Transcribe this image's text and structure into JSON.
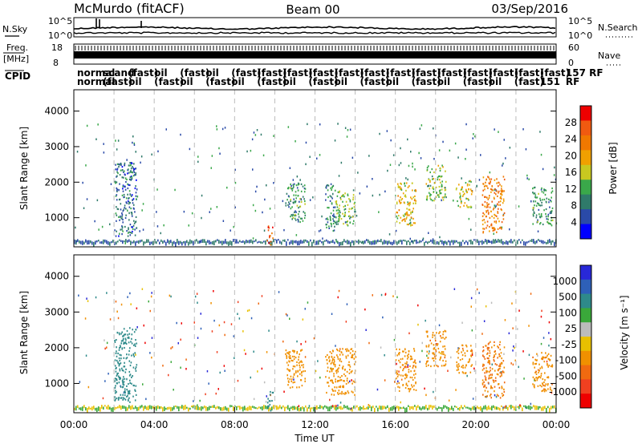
{
  "header": {
    "title": "McMurdo (fitACF)",
    "beam": "Beam 00",
    "date": "03/Sep/2016"
  },
  "noise_panel": {
    "left_label": "N.Sky",
    "right_label": "N.Search",
    "left_ticks": [
      "10^5",
      "10^0"
    ],
    "right_ticks": [
      "10^5",
      "10^0"
    ]
  },
  "freq_panel": {
    "left_label": "Freq.",
    "left_unit": "[MHz]",
    "left_ticks": [
      "18",
      "8"
    ],
    "right_label": "Nave",
    "right_ticks": [
      "60",
      "0"
    ]
  },
  "cpid_panel": {
    "label": "CPID",
    "row1": [
      "normal",
      "scand",
      "(fast)",
      "oil",
      "(fast)",
      "oil",
      "(fast)",
      "(fast)",
      "(fast)",
      "(fast)",
      "(fast)",
      "(fast)",
      "(fast)",
      "(fast)",
      "(fast)",
      "(fast)",
      "(fast)",
      "(fast)",
      "(fast)",
      "157 RF"
    ],
    "row2": [
      "normal",
      "(fast)",
      "oil",
      "(fast)",
      "oil",
      "(fast)",
      "oil",
      "(fast)",
      "oil",
      "(fast)",
      "oil",
      "(fast)",
      "oil",
      "(fast)",
      "oil",
      "(fast)",
      "oil",
      "(fast)",
      "151",
      "RF"
    ]
  },
  "colors": {
    "power_scale": [
      "#0000ff",
      "#2a4aa8",
      "#2f7a6a",
      "#3aa84a",
      "#c8c820",
      "#f0a000",
      "#f07800",
      "#f05a10",
      "#ee0000"
    ],
    "velocity_scale": [
      "#2828d8",
      "#2e60b8",
      "#2e8a8a",
      "#3aa83a",
      "#bcbcbc",
      "#e8c000",
      "#f09000",
      "#f06a10",
      "#f04020",
      "#ee0000"
    ]
  },
  "chart_data": [
    {
      "type": "heatmap",
      "panel": "power",
      "ylabel": "Slant Range [km]",
      "xlim_hours": [
        0,
        24
      ],
      "ylim_km": [
        180,
        4600
      ],
      "yticks": [
        1000,
        2000,
        3000,
        4000
      ],
      "colorbar": {
        "label": "Power [dB]",
        "ticks": [
          "28",
          "24",
          "20",
          "16",
          "12",
          "8",
          "4"
        ]
      },
      "echo_regions": [
        {
          "t0": 2.0,
          "t1": 3.1,
          "r0": 500,
          "r1": 2600,
          "value": 6
        },
        {
          "t0": 9.6,
          "t1": 9.9,
          "r0": 250,
          "r1": 800,
          "value": 28
        },
        {
          "t0": 10.5,
          "t1": 11.5,
          "r0": 900,
          "r1": 2000,
          "value": 10
        },
        {
          "t0": 12.5,
          "t1": 13.0,
          "r0": 600,
          "r1": 2000,
          "value": 9
        },
        {
          "t0": 13.0,
          "t1": 14.0,
          "r0": 800,
          "r1": 1800,
          "value": 13
        },
        {
          "t0": 16.0,
          "t1": 17.0,
          "r0": 800,
          "r1": 2000,
          "value": 18
        },
        {
          "t0": 17.5,
          "t1": 18.5,
          "r0": 1500,
          "r1": 2500,
          "value": 14
        },
        {
          "t0": 19.0,
          "t1": 19.8,
          "r0": 1300,
          "r1": 2100,
          "value": 17
        },
        {
          "t0": 20.3,
          "t1": 21.4,
          "r0": 600,
          "r1": 2200,
          "value": 24
        },
        {
          "t0": 22.8,
          "t1": 23.8,
          "r0": 800,
          "r1": 1900,
          "value": 10
        }
      ]
    },
    {
      "type": "heatmap",
      "panel": "velocity",
      "ylabel": "Slant Range [km]",
      "xlabel": "Time UT",
      "xlim_hours": [
        0,
        24
      ],
      "xticks": [
        "00:00",
        "04:00",
        "08:00",
        "12:00",
        "16:00",
        "20:00",
        "00:00"
      ],
      "ylim_km": [
        180,
        4600
      ],
      "yticks": [
        1000,
        2000,
        3000,
        4000
      ],
      "colorbar": {
        "label": "Velocity [m s⁻¹]",
        "ticks": [
          "1000",
          "500",
          "100",
          "25",
          "-25",
          "-100",
          "-500",
          "-1000"
        ]
      },
      "echo_regions": [
        {
          "t0": 2.0,
          "t1": 3.1,
          "r0": 500,
          "r1": 2600,
          "value": 150
        },
        {
          "t0": 9.6,
          "t1": 9.9,
          "r0": 250,
          "r1": 800,
          "value": 300
        },
        {
          "t0": 10.5,
          "t1": 11.5,
          "r0": 900,
          "r1": 2000,
          "value": -300
        },
        {
          "t0": 12.5,
          "t1": 14.0,
          "r0": 700,
          "r1": 2000,
          "value": -300
        },
        {
          "t0": 16.0,
          "t1": 17.0,
          "r0": 800,
          "r1": 2000,
          "value": -400
        },
        {
          "t0": 17.5,
          "t1": 18.5,
          "r0": 1500,
          "r1": 2500,
          "value": -400
        },
        {
          "t0": 19.0,
          "t1": 19.8,
          "r0": 1300,
          "r1": 2100,
          "value": -400
        },
        {
          "t0": 20.3,
          "t1": 21.4,
          "r0": 600,
          "r1": 2200,
          "value": -500
        },
        {
          "t0": 22.8,
          "t1": 23.8,
          "r0": 800,
          "r1": 1900,
          "value": -400
        }
      ]
    }
  ]
}
